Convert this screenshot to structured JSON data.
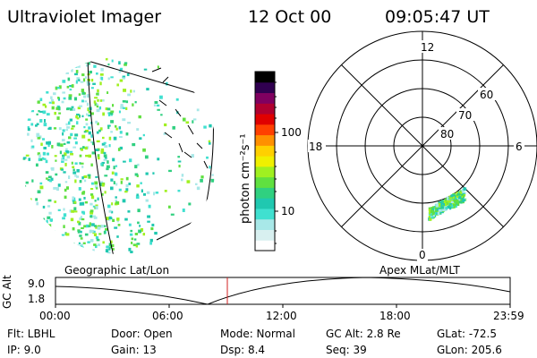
{
  "header": {
    "instrument": "Ultraviolet Imager",
    "date": "12 Oct 00",
    "time": "09:05:47 UT"
  },
  "colorbar": {
    "unit_label": "photon cm⁻²s⁻¹",
    "tick_100": "100",
    "tick_10": "10",
    "colors": [
      "#ffffff",
      "#d8f0f0",
      "#a8e8e8",
      "#40e0d0",
      "#20c8b0",
      "#30d080",
      "#60e040",
      "#a0f020",
      "#f0f000",
      "#ffd000",
      "#ff9000",
      "#ff4000",
      "#e00000",
      "#b00030",
      "#800060",
      "#300050",
      "#000000"
    ]
  },
  "polar": {
    "mlt_12": "12",
    "mlt_18": "18",
    "mlt_6": "6",
    "mlt_0": "0",
    "lat_60": "60",
    "lat_70": "70",
    "lat_80": "80"
  },
  "timeline": {
    "left_title": "Geographic Lat/Lon",
    "right_title": "Apex MLat/MLT",
    "axis_label": "GC Alt",
    "y_top": "9.0",
    "y_bottom": "1.8",
    "ticks": [
      "00:00",
      "06:00",
      "12:00",
      "18:00",
      "23:59"
    ]
  },
  "info": {
    "filter": "Flt: LBHL",
    "ip": "IP:  9.0",
    "door": "Door: Open",
    "gain": "Gain: 13",
    "mode": "Mode: Normal",
    "dsp": "Dsp:     8.4",
    "gc_alt": "GC Alt: 2.8 Re",
    "seq": "Seq: 39",
    "glat": "GLat: -72.5",
    "glon": "GLon: 205.6"
  }
}
